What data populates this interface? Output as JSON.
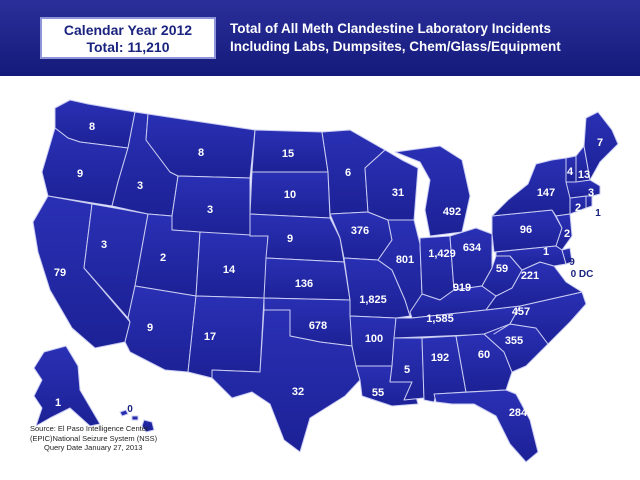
{
  "header": {
    "year_label": "Calendar Year 2012",
    "total_label": "Total: 11,210",
    "title_line1": "Total of All Meth Clandestine Laboratory Incidents",
    "title_line2": "Including Labs, Dumpsites, Chem/Glass/Equipment"
  },
  "colors": {
    "banner": "#1f2590",
    "state_fill": "#2328a8",
    "state_stroke": "#c9ccf2",
    "label": "#ffffff"
  },
  "states": {
    "WA": "8",
    "OR": "9",
    "CA": "79",
    "NV": "3",
    "ID": "3",
    "MT": "8",
    "WY": "3",
    "UT": "2",
    "AZ": "9",
    "CO": "14",
    "NM": "17",
    "ND": "15",
    "SD": "10",
    "NE": "9",
    "KS": "136",
    "OK": "678",
    "TX": "32",
    "MN": "6",
    "IA": "376",
    "MO": "1,825",
    "AR": "100",
    "LA": "55",
    "WI": "31",
    "IL": "801",
    "MI": "492",
    "IN": "1,429",
    "OH": "634",
    "KY": "919",
    "TN": "1,585",
    "MS": "5",
    "AL": "192",
    "GA": "60",
    "FL": "284",
    "SC": "355",
    "NC": "457",
    "VA": "221",
    "WV": "59",
    "PA": "96",
    "NY": "147",
    "ME": "7",
    "VT": "4",
    "NH": "13",
    "MA": "3",
    "CT": "2",
    "RI": "1",
    "NJ": "2",
    "DE": "1",
    "MD": "9",
    "DC": "0 DC",
    "AK": "1",
    "HI": "0"
  },
  "source": {
    "line1": "Source: El Paso Intelligence Center",
    "line2": "(EPIC)National Seizure System (NSS)",
    "line3": "Query Date January 27, 2013"
  }
}
